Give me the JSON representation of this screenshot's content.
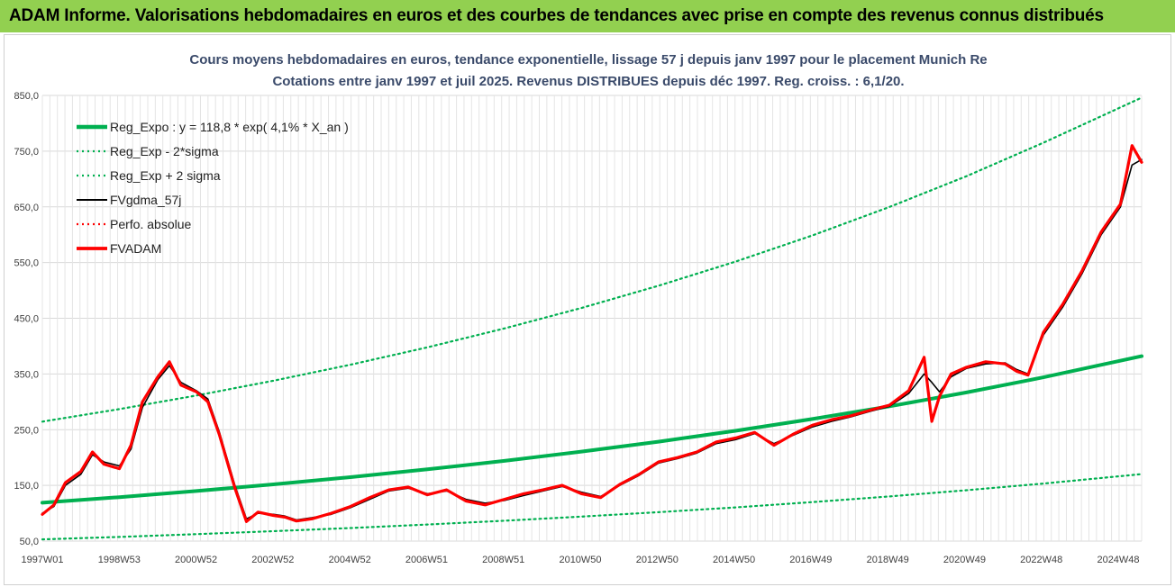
{
  "header": {
    "text": "ADAM Informe. Valorisations hebdomadaires en euros et des courbes de tendances avec prise en compte des revenus connus distribués"
  },
  "chart_data": {
    "type": "line",
    "title_line1": "Cours moyens hebdomadaires en euros, tendance exponentielle, lissage 57 j depuis janv 1997 pour le placement Munich Re",
    "title_line2": "Cotations entre janv 1997 et juil 2025. Revenus DISTRIBUES depuis déc 1997. Reg. croiss. : 6,1/20.",
    "x_ticks": [
      "1997W01",
      "1998W53",
      "2000W52",
      "2002W52",
      "2004W52",
      "2006W51",
      "2008W51",
      "2010W50",
      "2012W50",
      "2014W50",
      "2016W49",
      "2018W49",
      "2020W49",
      "2022W48",
      "2024W48"
    ],
    "y_ticks": [
      "50,0",
      "150,0",
      "250,0",
      "350,0",
      "450,0",
      "550,0",
      "650,0",
      "750,0",
      "850,0"
    ],
    "ylim": [
      50,
      850
    ],
    "xlim": [
      1997.0,
      2025.55
    ],
    "grid": true,
    "legend_position": "top-left",
    "series": [
      {
        "name": "Reg_Expo : y = 118,8 * exp( 4,1% *  X_an )",
        "color": "#00b050",
        "style": "solid-thick",
        "x": [
          1997.0,
          1999.0,
          2001.0,
          2003.0,
          2005.0,
          2007.0,
          2009.0,
          2011.0,
          2013.0,
          2015.0,
          2017.0,
          2019.0,
          2021.0,
          2023.0,
          2025.55
        ],
        "y": [
          118.8,
          128.9,
          139.9,
          151.8,
          164.7,
          178.8,
          194.0,
          210.6,
          228.5,
          248.0,
          269.1,
          292.0,
          316.9,
          343.9,
          381.9
        ]
      },
      {
        "name": "Reg_Exp - 2*sigma",
        "color": "#00b050",
        "style": "dotted",
        "x": [
          1997.0,
          1999.0,
          2001.0,
          2003.0,
          2005.0,
          2007.0,
          2009.0,
          2011.0,
          2013.0,
          2015.0,
          2017.0,
          2019.0,
          2021.0,
          2023.0,
          2025.55
        ],
        "y": [
          53.0,
          57.5,
          62.4,
          67.7,
          73.4,
          79.7,
          86.5,
          93.9,
          101.9,
          110.5,
          120.0,
          130.2,
          141.3,
          153.3,
          170.2
        ]
      },
      {
        "name": "Reg_Exp + 2 sigma",
        "color": "#00b050",
        "style": "dotted",
        "x": [
          1997.0,
          1999.0,
          2001.0,
          2003.0,
          2005.0,
          2007.0,
          2009.0,
          2011.0,
          2013.0,
          2015.0,
          2017.0,
          2019.0,
          2021.0,
          2023.0,
          2025.55
        ],
        "y": [
          264.4,
          286.9,
          311.3,
          337.8,
          366.6,
          397.8,
          431.7,
          468.5,
          508.4,
          551.7,
          598.7,
          649.7,
          705.1,
          765.2,
          846.0
        ]
      },
      {
        "name": "FVgdma_57j",
        "color": "#000000",
        "style": "solid",
        "x": [
          1997.0,
          1997.3,
          1997.6,
          1998.0,
          1998.3,
          1998.6,
          1999.0,
          1999.3,
          1999.6,
          2000.0,
          2000.3,
          2000.6,
          2001.0,
          2001.3,
          2001.6,
          2002.0,
          2002.3,
          2002.6,
          2003.0,
          2003.3,
          2003.6,
          2004.0,
          2004.5,
          2005.0,
          2005.5,
          2006.0,
          2006.5,
          2007.0,
          2007.5,
          2008.0,
          2008.5,
          2009.0,
          2009.5,
          2010.0,
          2010.5,
          2011.0,
          2011.5,
          2012.0,
          2012.5,
          2013.0,
          2013.5,
          2014.0,
          2014.5,
          2015.0,
          2015.5,
          2016.0,
          2016.5,
          2017.0,
          2017.5,
          2018.0,
          2018.5,
          2019.0,
          2019.5,
          2019.9,
          2020.1,
          2020.3,
          2020.6,
          2021.0,
          2021.5,
          2022.0,
          2022.3,
          2022.6,
          2023.0,
          2023.5,
          2024.0,
          2024.5,
          2025.0,
          2025.3,
          2025.55
        ],
        "y": [
          100,
          112,
          150,
          170,
          205,
          192,
          185,
          215,
          290,
          340,
          365,
          335,
          320,
          305,
          245,
          150,
          90,
          100,
          98,
          95,
          88,
          92,
          98,
          110,
          125,
          140,
          145,
          135,
          140,
          125,
          118,
          123,
          132,
          140,
          148,
          138,
          130,
          150,
          168,
          190,
          198,
          208,
          225,
          232,
          243,
          225,
          240,
          255,
          265,
          273,
          283,
          292,
          315,
          350,
          335,
          318,
          345,
          360,
          368,
          370,
          358,
          350,
          420,
          470,
          530,
          600,
          650,
          725,
          735
        ]
      },
      {
        "name": "Perfo. absolue",
        "color": "#ff0000",
        "style": "dotted",
        "x": [
          1997.0,
          1997.3,
          1997.6,
          1998.0,
          1998.3,
          1998.6,
          1999.0,
          1999.3,
          1999.6,
          2000.0,
          2000.3,
          2000.6,
          2001.0,
          2001.3,
          2001.6,
          2002.0,
          2002.3,
          2002.6,
          2003.0,
          2003.3,
          2003.6,
          2004.0,
          2004.5,
          2005.0,
          2005.5,
          2006.0,
          2006.5,
          2007.0,
          2007.5,
          2008.0,
          2008.5,
          2009.0,
          2009.5,
          2010.0,
          2010.5,
          2011.0,
          2011.5,
          2012.0,
          2012.5,
          2013.0,
          2013.5,
          2014.0,
          2014.5,
          2015.0,
          2015.5,
          2016.0,
          2016.5,
          2017.0,
          2017.5,
          2018.0,
          2018.5,
          2019.0,
          2019.5,
          2019.9,
          2020.1,
          2020.3,
          2020.6,
          2021.0,
          2021.5,
          2022.0,
          2022.3,
          2022.6,
          2023.0,
          2023.5,
          2024.0,
          2024.5,
          2025.0,
          2025.3,
          2025.55
        ],
        "y": [
          98,
          115,
          155,
          175,
          210,
          188,
          180,
          222,
          300,
          345,
          372,
          330,
          318,
          300,
          240,
          145,
          85,
          102,
          96,
          93,
          86,
          90,
          100,
          112,
          128,
          142,
          147,
          133,
          142,
          122,
          115,
          125,
          135,
          142,
          150,
          135,
          128,
          152,
          170,
          192,
          200,
          210,
          228,
          235,
          245,
          222,
          242,
          258,
          268,
          275,
          285,
          294,
          320,
          380,
          265,
          310,
          350,
          362,
          372,
          368,
          355,
          348,
          425,
          475,
          535,
          605,
          655,
          760,
          730
        ]
      },
      {
        "name": "FVADAM",
        "color": "#ff0000",
        "style": "solid-thick",
        "x": [
          1997.0,
          1997.3,
          1997.6,
          1998.0,
          1998.3,
          1998.6,
          1999.0,
          1999.3,
          1999.6,
          2000.0,
          2000.3,
          2000.6,
          2001.0,
          2001.3,
          2001.6,
          2002.0,
          2002.3,
          2002.6,
          2003.0,
          2003.3,
          2003.6,
          2004.0,
          2004.5,
          2005.0,
          2005.5,
          2006.0,
          2006.5,
          2007.0,
          2007.5,
          2008.0,
          2008.5,
          2009.0,
          2009.5,
          2010.0,
          2010.5,
          2011.0,
          2011.5,
          2012.0,
          2012.5,
          2013.0,
          2013.5,
          2014.0,
          2014.5,
          2015.0,
          2015.5,
          2016.0,
          2016.5,
          2017.0,
          2017.5,
          2018.0,
          2018.5,
          2019.0,
          2019.5,
          2019.9,
          2020.1,
          2020.3,
          2020.6,
          2021.0,
          2021.5,
          2022.0,
          2022.3,
          2022.6,
          2023.0,
          2023.5,
          2024.0,
          2024.5,
          2025.0,
          2025.3,
          2025.55
        ],
        "y": [
          98,
          115,
          155,
          175,
          210,
          188,
          180,
          222,
          300,
          345,
          372,
          330,
          318,
          300,
          240,
          145,
          85,
          102,
          96,
          93,
          86,
          90,
          100,
          112,
          128,
          142,
          147,
          133,
          142,
          122,
          115,
          125,
          135,
          142,
          150,
          135,
          128,
          152,
          170,
          192,
          200,
          210,
          228,
          235,
          245,
          222,
          242,
          258,
          268,
          275,
          285,
          294,
          320,
          380,
          265,
          310,
          350,
          362,
          372,
          368,
          355,
          348,
          425,
          475,
          535,
          605,
          655,
          760,
          730
        ]
      }
    ]
  }
}
